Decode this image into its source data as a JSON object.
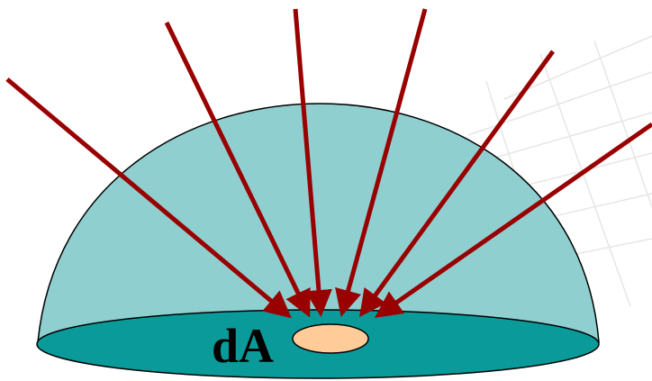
{
  "label": "dA"
}
